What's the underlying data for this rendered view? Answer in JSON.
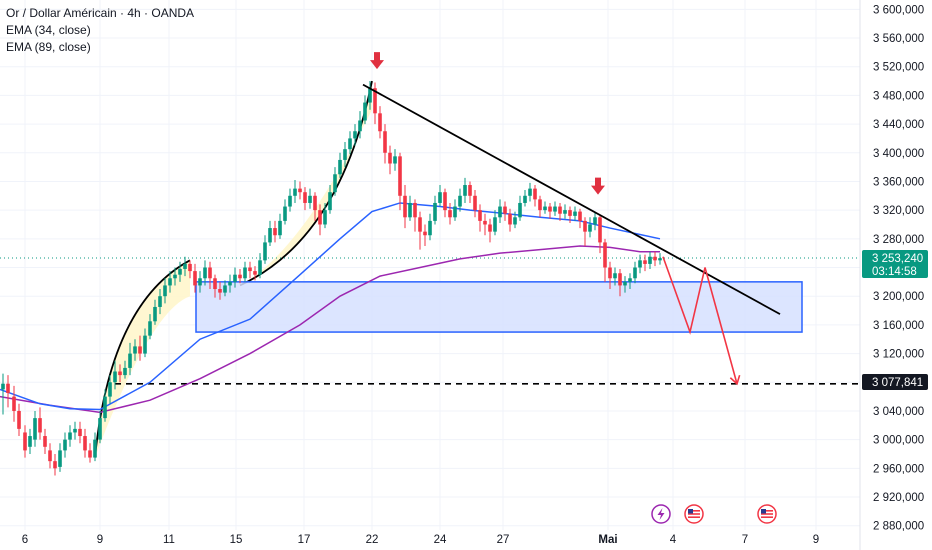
{
  "legend": {
    "title": "Or / Dollar Américain · 4h · OANDA",
    "ema34": "EMA (34, close)",
    "ema89": "EMA (89, close)"
  },
  "price_label": {
    "value": "3 253,240",
    "countdown": "03:14:58"
  },
  "level_label": {
    "value": "3 077,841"
  },
  "colors": {
    "up": "#089981",
    "down": "#f23645",
    "ema34": "#2962ff",
    "ema89": "#9c27b0",
    "zone_fill": "#d6e0ff",
    "zone_border": "#2962ff",
    "arrow": "#e03040",
    "trendline": "#000000",
    "projection": "#f23645"
  },
  "events": [
    "lightning-event-icon",
    "us-flag-event-icon",
    "us-flag-event-icon"
  ],
  "chart_data": {
    "type": "candlestick",
    "timeframe": "4h",
    "y_ticks": [
      "3 600,000",
      "3 560,000",
      "3 520,000",
      "3 480,000",
      "3 440,000",
      "3 400,000",
      "3 360,000",
      "3 320,000",
      "3 280,000",
      "3 240,000",
      "3 200,000",
      "3 160,000",
      "3 120,000",
      "3 080,000",
      "3 040,000",
      "3 000,000",
      "2 960,000",
      "2 920,000",
      "2 880,000"
    ],
    "y_tick_values": [
      3600,
      3560,
      3520,
      3480,
      3440,
      3400,
      3360,
      3320,
      3280,
      3240,
      3200,
      3160,
      3120,
      3080,
      3040,
      3000,
      2960,
      2920,
      2880
    ],
    "ylim": [
      2874,
      3613
    ],
    "x_ticks": [
      "6",
      "9",
      "11",
      "15",
      "17",
      "22",
      "24",
      "27",
      "Mai",
      "4",
      "7",
      "9"
    ],
    "x_tick_pos": [
      25,
      100,
      169,
      236,
      304,
      372,
      440,
      503,
      608,
      673,
      745,
      816
    ],
    "last_price": 3253.24,
    "support_level": 3077.841,
    "zone": {
      "top": 3220,
      "bottom": 3150
    },
    "ema34_points": [
      [
        0,
        3070
      ],
      [
        40,
        3050
      ],
      [
        70,
        3043
      ],
      [
        100,
        3042
      ],
      [
        150,
        3080
      ],
      [
        200,
        3140
      ],
      [
        250,
        3168
      ],
      [
        300,
        3230
      ],
      [
        340,
        3280
      ],
      [
        372,
        3318
      ],
      [
        400,
        3330
      ],
      [
        440,
        3325
      ],
      [
        470,
        3320
      ],
      [
        500,
        3316
      ],
      [
        540,
        3310
      ],
      [
        580,
        3305
      ],
      [
        610,
        3295
      ],
      [
        640,
        3286
      ],
      [
        660,
        3280
      ]
    ],
    "ema89_points": [
      [
        0,
        3060
      ],
      [
        50,
        3048
      ],
      [
        100,
        3038
      ],
      [
        150,
        3055
      ],
      [
        200,
        3085
      ],
      [
        250,
        3120
      ],
      [
        300,
        3160
      ],
      [
        340,
        3200
      ],
      [
        380,
        3228
      ],
      [
        420,
        3240
      ],
      [
        460,
        3252
      ],
      [
        500,
        3260
      ],
      [
        540,
        3265
      ],
      [
        580,
        3270
      ],
      [
        610,
        3268
      ],
      [
        640,
        3262
      ],
      [
        660,
        3262
      ]
    ],
    "trendline": [
      [
        363,
        3495
      ],
      [
        780,
        3175
      ]
    ],
    "projection": [
      [
        663,
        3255
      ],
      [
        690,
        3150
      ],
      [
        705,
        3240
      ],
      [
        737,
        3077.841
      ]
    ],
    "arrows": [
      [
        377,
        3525
      ],
      [
        598,
        3350
      ]
    ],
    "candles": [
      [
        3,
        3070,
        3078,
        3035,
        3092
      ],
      [
        8,
        3078,
        3065,
        3045,
        3090
      ],
      [
        14,
        3060,
        3040,
        3025,
        3075
      ],
      [
        19,
        3040,
        3015,
        3005,
        3050
      ],
      [
        25,
        3010,
        2985,
        2975,
        3020
      ],
      [
        30,
        2990,
        3005,
        2980,
        3015
      ],
      [
        35,
        3000,
        3030,
        2990,
        3040
      ],
      [
        40,
        3030,
        3010,
        3000,
        3045
      ],
      [
        45,
        3005,
        2990,
        2980,
        3015
      ],
      [
        50,
        2985,
        2970,
        2960,
        2995
      ],
      [
        55,
        2970,
        2960,
        2950,
        2980
      ],
      [
        60,
        2962,
        2985,
        2955,
        2995
      ],
      [
        65,
        2985,
        3000,
        2975,
        3010
      ],
      [
        70,
        3000,
        3010,
        2990,
        3020
      ],
      [
        75,
        3010,
        3015,
        3000,
        3025
      ],
      [
        80,
        3015,
        3005,
        2995,
        3025
      ],
      [
        85,
        3005,
        2985,
        2975,
        3015
      ],
      [
        90,
        2985,
        2975,
        2968,
        2995
      ],
      [
        95,
        2975,
        3000,
        2970,
        3010
      ],
      [
        100,
        3000,
        3030,
        2995,
        3040
      ],
      [
        105,
        3030,
        3060,
        3025,
        3070
      ],
      [
        110,
        3060,
        3080,
        3050,
        3090
      ],
      [
        115,
        3080,
        3095,
        3070,
        3110
      ],
      [
        120,
        3095,
        3090,
        3080,
        3105
      ],
      [
        125,
        3090,
        3100,
        3085,
        3110
      ],
      [
        130,
        3100,
        3120,
        3090,
        3135
      ],
      [
        135,
        3120,
        3130,
        3110,
        3140
      ],
      [
        140,
        3130,
        3120,
        3110,
        3145
      ],
      [
        145,
        3120,
        3145,
        3115,
        3155
      ],
      [
        150,
        3145,
        3165,
        3140,
        3175
      ],
      [
        155,
        3165,
        3185,
        3160,
        3195
      ],
      [
        160,
        3185,
        3200,
        3175,
        3210
      ],
      [
        165,
        3200,
        3215,
        3190,
        3225
      ],
      [
        170,
        3215,
        3225,
        3205,
        3235
      ],
      [
        175,
        3225,
        3230,
        3215,
        3240
      ],
      [
        180,
        3230,
        3238,
        3220,
        3248
      ],
      [
        185,
        3238,
        3245,
        3228,
        3255
      ],
      [
        190,
        3245,
        3235,
        3225,
        3250
      ],
      [
        195,
        3235,
        3215,
        3205,
        3245
      ],
      [
        200,
        3215,
        3225,
        3205,
        3235
      ],
      [
        205,
        3225,
        3240,
        3215,
        3250
      ],
      [
        210,
        3240,
        3225,
        3210,
        3248
      ],
      [
        215,
        3225,
        3210,
        3198,
        3230
      ],
      [
        220,
        3210,
        3205,
        3195,
        3220
      ],
      [
        225,
        3205,
        3215,
        3200,
        3222
      ],
      [
        230,
        3215,
        3220,
        3205,
        3230
      ],
      [
        235,
        3220,
        3230,
        3212,
        3240
      ],
      [
        240,
        3230,
        3225,
        3218,
        3238
      ],
      [
        245,
        3225,
        3240,
        3220,
        3248
      ],
      [
        250,
        3240,
        3235,
        3225,
        3248
      ],
      [
        255,
        3235,
        3230,
        3222,
        3242
      ],
      [
        260,
        3230,
        3250,
        3225,
        3260
      ],
      [
        265,
        3250,
        3275,
        3245,
        3285
      ],
      [
        270,
        3275,
        3295,
        3270,
        3305
      ],
      [
        275,
        3295,
        3285,
        3275,
        3305
      ],
      [
        280,
        3285,
        3305,
        3280,
        3315
      ],
      [
        285,
        3305,
        3325,
        3300,
        3335
      ],
      [
        290,
        3325,
        3340,
        3318,
        3350
      ],
      [
        295,
        3340,
        3350,
        3330,
        3362
      ],
      [
        300,
        3350,
        3345,
        3335,
        3360
      ],
      [
        305,
        3345,
        3330,
        3320,
        3352
      ],
      [
        310,
        3330,
        3340,
        3322,
        3350
      ],
      [
        315,
        3340,
        3320,
        3305,
        3345
      ],
      [
        320,
        3320,
        3300,
        3285,
        3328
      ],
      [
        325,
        3300,
        3320,
        3295,
        3330
      ],
      [
        330,
        3320,
        3345,
        3315,
        3355
      ],
      [
        335,
        3345,
        3370,
        3340,
        3380
      ],
      [
        340,
        3370,
        3390,
        3365,
        3400
      ],
      [
        345,
        3390,
        3405,
        3380,
        3415
      ],
      [
        350,
        3405,
        3420,
        3398,
        3430
      ],
      [
        355,
        3420,
        3430,
        3410,
        3440
      ],
      [
        360,
        3430,
        3445,
        3420,
        3458
      ],
      [
        365,
        3445,
        3470,
        3440,
        3480
      ],
      [
        370,
        3470,
        3490,
        3460,
        3500
      ],
      [
        375,
        3490,
        3455,
        3440,
        3498
      ],
      [
        380,
        3455,
        3430,
        3420,
        3465
      ],
      [
        385,
        3430,
        3400,
        3385,
        3440
      ],
      [
        390,
        3400,
        3385,
        3370,
        3410
      ],
      [
        395,
        3385,
        3395,
        3375,
        3405
      ],
      [
        400,
        3395,
        3340,
        3320,
        3400
      ],
      [
        405,
        3340,
        3310,
        3295,
        3355
      ],
      [
        410,
        3310,
        3330,
        3305,
        3340
      ],
      [
        415,
        3330,
        3310,
        3290,
        3335
      ],
      [
        420,
        3310,
        3290,
        3265,
        3318
      ],
      [
        425,
        3290,
        3285,
        3270,
        3300
      ],
      [
        430,
        3285,
        3305,
        3278,
        3315
      ],
      [
        435,
        3305,
        3330,
        3300,
        3340
      ],
      [
        440,
        3330,
        3345,
        3325,
        3355
      ],
      [
        445,
        3345,
        3320,
        3310,
        3350
      ],
      [
        450,
        3320,
        3310,
        3300,
        3330
      ],
      [
        455,
        3310,
        3325,
        3305,
        3335
      ],
      [
        460,
        3325,
        3340,
        3318,
        3350
      ],
      [
        465,
        3340,
        3355,
        3330,
        3365
      ],
      [
        470,
        3355,
        3340,
        3330,
        3360
      ],
      [
        475,
        3340,
        3320,
        3310,
        3348
      ],
      [
        480,
        3320,
        3305,
        3290,
        3328
      ],
      [
        485,
        3305,
        3300,
        3285,
        3315
      ],
      [
        490,
        3300,
        3290,
        3275,
        3308
      ],
      [
        495,
        3290,
        3310,
        3285,
        3320
      ],
      [
        500,
        3310,
        3325,
        3302,
        3335
      ],
      [
        505,
        3325,
        3315,
        3305,
        3332
      ],
      [
        510,
        3315,
        3300,
        3290,
        3322
      ],
      [
        515,
        3300,
        3310,
        3295,
        3318
      ],
      [
        520,
        3310,
        3330,
        3305,
        3340
      ],
      [
        525,
        3330,
        3340,
        3325,
        3348
      ],
      [
        530,
        3340,
        3350,
        3332,
        3358
      ],
      [
        535,
        3350,
        3335,
        3325,
        3355
      ],
      [
        540,
        3335,
        3320,
        3310,
        3340
      ],
      [
        545,
        3320,
        3325,
        3315,
        3332
      ],
      [
        550,
        3325,
        3318,
        3308,
        3330
      ],
      [
        555,
        3318,
        3325,
        3312,
        3332
      ],
      [
        560,
        3325,
        3315,
        3305,
        3330
      ],
      [
        565,
        3315,
        3320,
        3308,
        3328
      ],
      [
        570,
        3320,
        3312,
        3302,
        3325
      ],
      [
        575,
        3312,
        3318,
        3305,
        3325
      ],
      [
        580,
        3318,
        3305,
        3295,
        3322
      ],
      [
        585,
        3305,
        3290,
        3270,
        3310
      ],
      [
        590,
        3290,
        3300,
        3282,
        3310
      ],
      [
        595,
        3300,
        3310,
        3292,
        3318
      ],
      [
        600,
        3310,
        3275,
        3260,
        3312
      ],
      [
        605,
        3275,
        3240,
        3220,
        3280
      ],
      [
        610,
        3240,
        3225,
        3210,
        3248
      ],
      [
        615,
        3225,
        3232,
        3215,
        3240
      ],
      [
        620,
        3232,
        3215,
        3200,
        3238
      ],
      [
        625,
        3215,
        3220,
        3205,
        3228
      ],
      [
        630,
        3220,
        3225,
        3210,
        3232
      ],
      [
        635,
        3225,
        3240,
        3218,
        3248
      ],
      [
        640,
        3240,
        3250,
        3232,
        3258
      ],
      [
        645,
        3250,
        3245,
        3235,
        3258
      ],
      [
        650,
        3245,
        3255,
        3238,
        3262
      ],
      [
        655,
        3255,
        3250,
        3242,
        3262
      ],
      [
        660,
        3250,
        3253,
        3244,
        3260
      ]
    ]
  }
}
